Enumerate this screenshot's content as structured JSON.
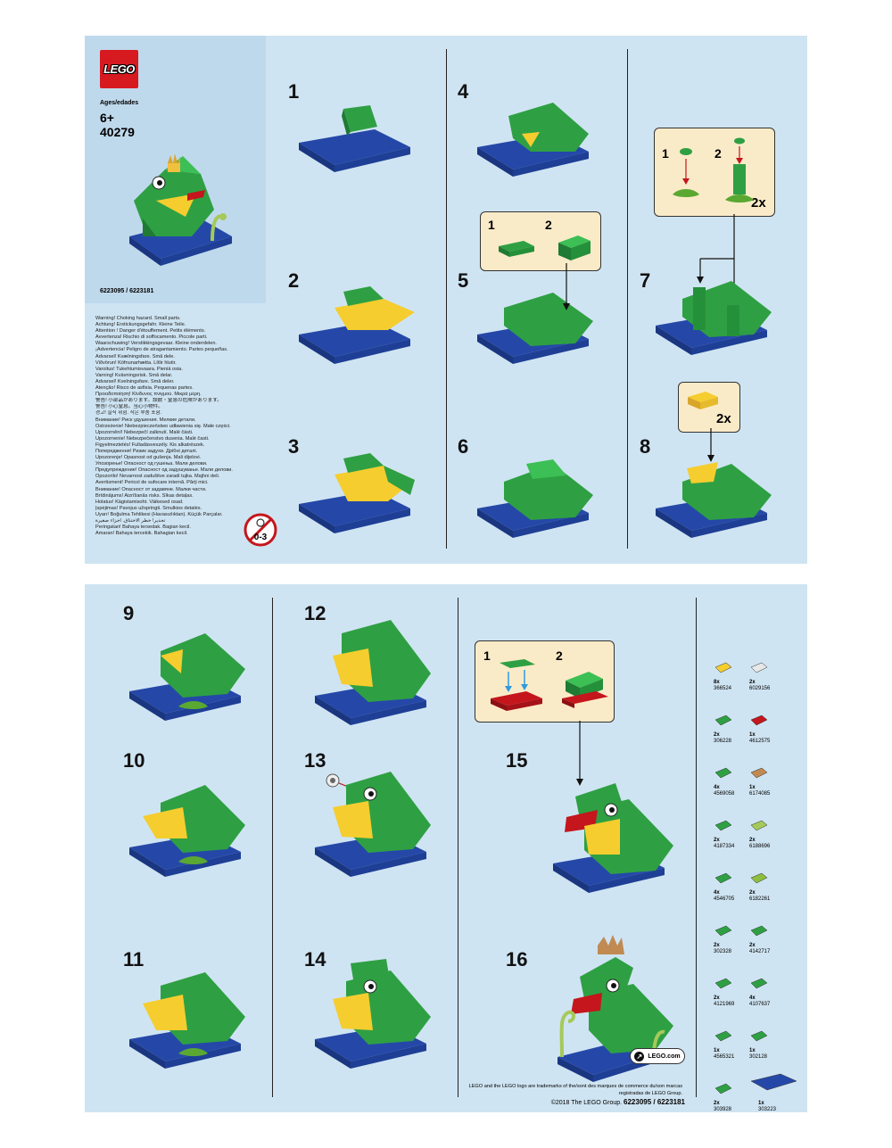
{
  "cover": {
    "brand": "LEGO",
    "ages_label": "Ages/edades",
    "age": "6+",
    "set_number": "40279",
    "barcode_ids": "6223095 / 6223181",
    "age_warning_icon": "0-3"
  },
  "warnings": [
    "Warning! Choking hazard. Small parts.",
    "Achtung! Erstickungsgefahr. Kleine Teile.",
    "Attention ! Danger d'étouffement. Petits éléments.",
    "Avvertenza! Rischio di soffocamento. Piccole parti.",
    "Waarschuwing! Verstikkingsgevaar. Kleine onderdelen.",
    "¡Advertencia! Peligro de atragantamiento. Partes pequeñas.",
    "Advarsel! Kvælningsfare. Små dele.",
    "Viðvörun! Köfnunarhætta. Lítlir hlutir.",
    "Varoitus! Tukehtumisvaara. Pieniä osia.",
    "Varning! Kvävningsrisk. Små delar.",
    "Advarsel! Kvelningsfare. Små deler.",
    "Atenção! Risco de asfixia. Pequenas partes.",
    "Προειδοποίηση! Κίνδυνος πνιγμού. Μικρά μέρη.",
    "警告! 小部品があります。誤飲・窒息の危険があります。",
    "警告! 小心窒息。当心小物件。",
    "경고! 질식 위험. 작은 부품 포함.",
    "Внимание! Риск удушения. Мелкие детали.",
    "Ostrzeżenie! Niebezpieczeństwo udławienia się. Małe części.",
    "Upozornění! Nebezpečí zalknutí. Malé části.",
    "Upozornenie! Nebezpečenstvo dusenia. Malé časti.",
    "Figyelmeztetés! Fulladásveszély. Kis alkatrészek.",
    "Попередження! Ризик задухи. Дрібні деталі.",
    "Upozorenje! Opasnost od gušenja. Mali dijelovi.",
    "Упозорење! Опасност од гушења. Мали делови.",
    "Предупреждение! Опасност од задушување. Мали делови.",
    "Opozorilo! Nevarnost zadušitve zaradi tujka. Majhni deli.",
    "Avertisment! Pericol de sufocare internă. Părţi mici.",
    "Внимание! Опасност от задавяне. Малки части.",
    "Brīdinājums! Aizrīšanās risks. Sīkas detaļas.",
    "Holatus! Kägistamisoht. Väikesed osad.",
    "Įspėjimas! Pavojus užspringti. Smulkios detalės.",
    "Uyarı! Boğulma Tehlikesi (Havasızlıktan). Küçük Parçalar.",
    "تحذير! خطر الاختناق. أجزاء صغيرة",
    "Peringatan! Bahaya tersedak. Bagian kecil.",
    "Amaran! Bahaya tercekik. Bahagian kecil."
  ],
  "steps": [
    {
      "number": "1"
    },
    {
      "number": "2"
    },
    {
      "number": "3"
    },
    {
      "number": "4"
    },
    {
      "number": "5"
    },
    {
      "number": "6"
    },
    {
      "number": "7"
    },
    {
      "number": "8"
    },
    {
      "number": "9"
    },
    {
      "number": "10"
    },
    {
      "number": "11"
    },
    {
      "number": "12"
    },
    {
      "number": "13"
    },
    {
      "number": "14"
    },
    {
      "number": "15"
    },
    {
      "number": "16"
    }
  ],
  "callouts": {
    "step5": {
      "sub1": "1",
      "sub2": "2"
    },
    "step7": {
      "sub1": "1",
      "sub2": "2",
      "multiplier": "2x"
    },
    "step8": {
      "multiplier": "2x"
    },
    "step15": {
      "sub1": "1",
      "sub2": "2"
    }
  },
  "parts": [
    {
      "qty": "8x",
      "id": "366524",
      "color": "#f5cd2f"
    },
    {
      "qty": "2x",
      "id": "6029156",
      "color": "#e8e8e8"
    },
    {
      "qty": "2x",
      "id": "306228",
      "color": "#2ea043"
    },
    {
      "qty": "1x",
      "id": "4612575",
      "color": "#c4161c"
    },
    {
      "qty": "4x",
      "id": "4569058",
      "color": "#2ea043"
    },
    {
      "qty": "1x",
      "id": "6174085",
      "color": "#c08a52"
    },
    {
      "qty": "2x",
      "id": "4187334",
      "color": "#2ea043"
    },
    {
      "qty": "2x",
      "id": "6188696",
      "color": "#a5c95a"
    },
    {
      "qty": "4x",
      "id": "4546705",
      "color": "#2ea043"
    },
    {
      "qty": "2x",
      "id": "6182261",
      "color": "#8cbf3f"
    },
    {
      "qty": "2x",
      "id": "302328",
      "color": "#2ea043"
    },
    {
      "qty": "2x",
      "id": "4142717",
      "color": "#2ea043"
    },
    {
      "qty": "2x",
      "id": "4121969",
      "color": "#2ea043"
    },
    {
      "qty": "4x",
      "id": "4107637",
      "color": "#2ea043"
    },
    {
      "qty": "1x",
      "id": "4565321",
      "color": "#2ea043"
    },
    {
      "qty": "1x",
      "id": "302128",
      "color": "#2ea043"
    },
    {
      "qty": "2x",
      "id": "303928",
      "color": "#2ea043"
    },
    {
      "qty": "1x",
      "id": "303223",
      "color": "#2548a8"
    }
  ],
  "footer": {
    "website": "LEGO.com",
    "trademark": "LEGO and the LEGO logo are trademarks of the/sont des marques de commerce du/son marcas registradas de LEGO Group.",
    "copyright": "©2018 The LEGO Group.",
    "copyright_ids": "6223095 / 6223181"
  },
  "colors": {
    "background": "#cfe4f2",
    "cover_panel": "#bfd9ec",
    "callout": "#faebc8",
    "brick_green": "#2ea043",
    "plate_blue": "#2548a8",
    "brick_yellow": "#f5cd2f",
    "brick_red": "#c4161c",
    "crown_tan": "#c08a52"
  }
}
